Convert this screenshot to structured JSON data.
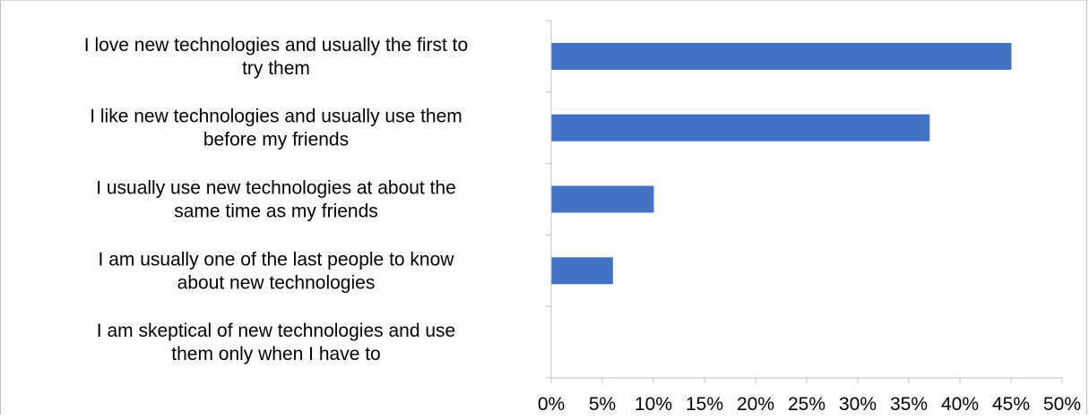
{
  "chart_data": {
    "type": "bar",
    "orientation": "horizontal",
    "categories": [
      [
        "I love new technologies and  usually the first to",
        "try them"
      ],
      [
        "I like new technologies and usually use them",
        "before my friends"
      ],
      [
        "I usually use new technologies at about the",
        "same time as my friends"
      ],
      [
        "I am usually one of the last people to know",
        "about new technologies"
      ],
      [
        "I am skeptical of new technologies and use",
        "them only when I have to"
      ]
    ],
    "values": [
      45,
      37,
      10,
      6,
      0
    ],
    "xlim": [
      0,
      50
    ],
    "xticks": [
      "0%",
      "5%",
      "10%",
      "15%",
      "20%",
      "25%",
      "30%",
      "35%",
      "40%",
      "45%",
      "50%"
    ],
    "bar_color": "#4472c4",
    "gridlines": false,
    "legend": "none"
  }
}
